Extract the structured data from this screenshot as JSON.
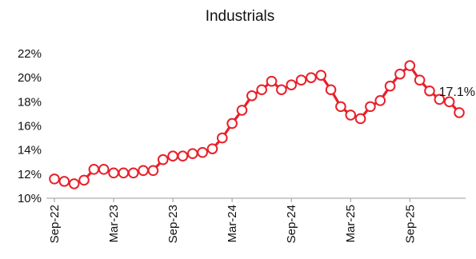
{
  "chart_data": {
    "type": "line",
    "title": "Industrials",
    "xlabel": "",
    "ylabel": "",
    "ylim": [
      10,
      22
    ],
    "y_ticks": [
      "10%",
      "12%",
      "14%",
      "16%",
      "18%",
      "20%",
      "22%"
    ],
    "x_tick_labels": [
      "Sep-22",
      "Mar-23",
      "Sep-23",
      "Mar-24",
      "Sep-24",
      "Mar-25",
      "Sep-25"
    ],
    "x": [
      "Sep-22",
      "Oct-22",
      "Nov-22",
      "Dec-22",
      "Jan-23",
      "Feb-23",
      "Mar-23",
      "Apr-23",
      "May-23",
      "Jun-23",
      "Jul-23",
      "Aug-23",
      "Sep-23",
      "Oct-23",
      "Nov-23",
      "Dec-23",
      "Jan-24",
      "Feb-24",
      "Mar-24",
      "Apr-24",
      "May-24",
      "Jun-24",
      "Jul-24",
      "Aug-24",
      "Sep-24",
      "Oct-24",
      "Nov-24",
      "Dec-24",
      "Jan-25",
      "Feb-25",
      "Mar-25",
      "Apr-25",
      "May-25",
      "Jun-25",
      "Jul-25",
      "Aug-25",
      "Sep-25",
      "Oct-25",
      "Nov-25",
      "Dec-25",
      "Jan-26",
      "Feb-26"
    ],
    "series": [
      {
        "color": "#e8202a",
        "values": [
          11.6,
          11.4,
          11.2,
          11.5,
          12.4,
          12.4,
          12.1,
          12.1,
          12.1,
          12.3,
          12.3,
          13.2,
          13.5,
          13.5,
          13.7,
          13.8,
          14.1,
          15.0,
          16.2,
          17.3,
          18.5,
          19.0,
          19.7,
          19.0,
          19.4,
          19.8,
          20.0,
          20.2,
          19.0,
          17.6,
          16.9,
          16.6,
          17.6,
          18.1,
          19.3,
          20.3,
          21.0,
          19.8,
          18.9,
          18.2,
          18.0,
          17.1
        ]
      }
    ],
    "data_labels": [
      {
        "index": 41,
        "text": "17.1%"
      }
    ],
    "grid": false,
    "legend": "none"
  }
}
